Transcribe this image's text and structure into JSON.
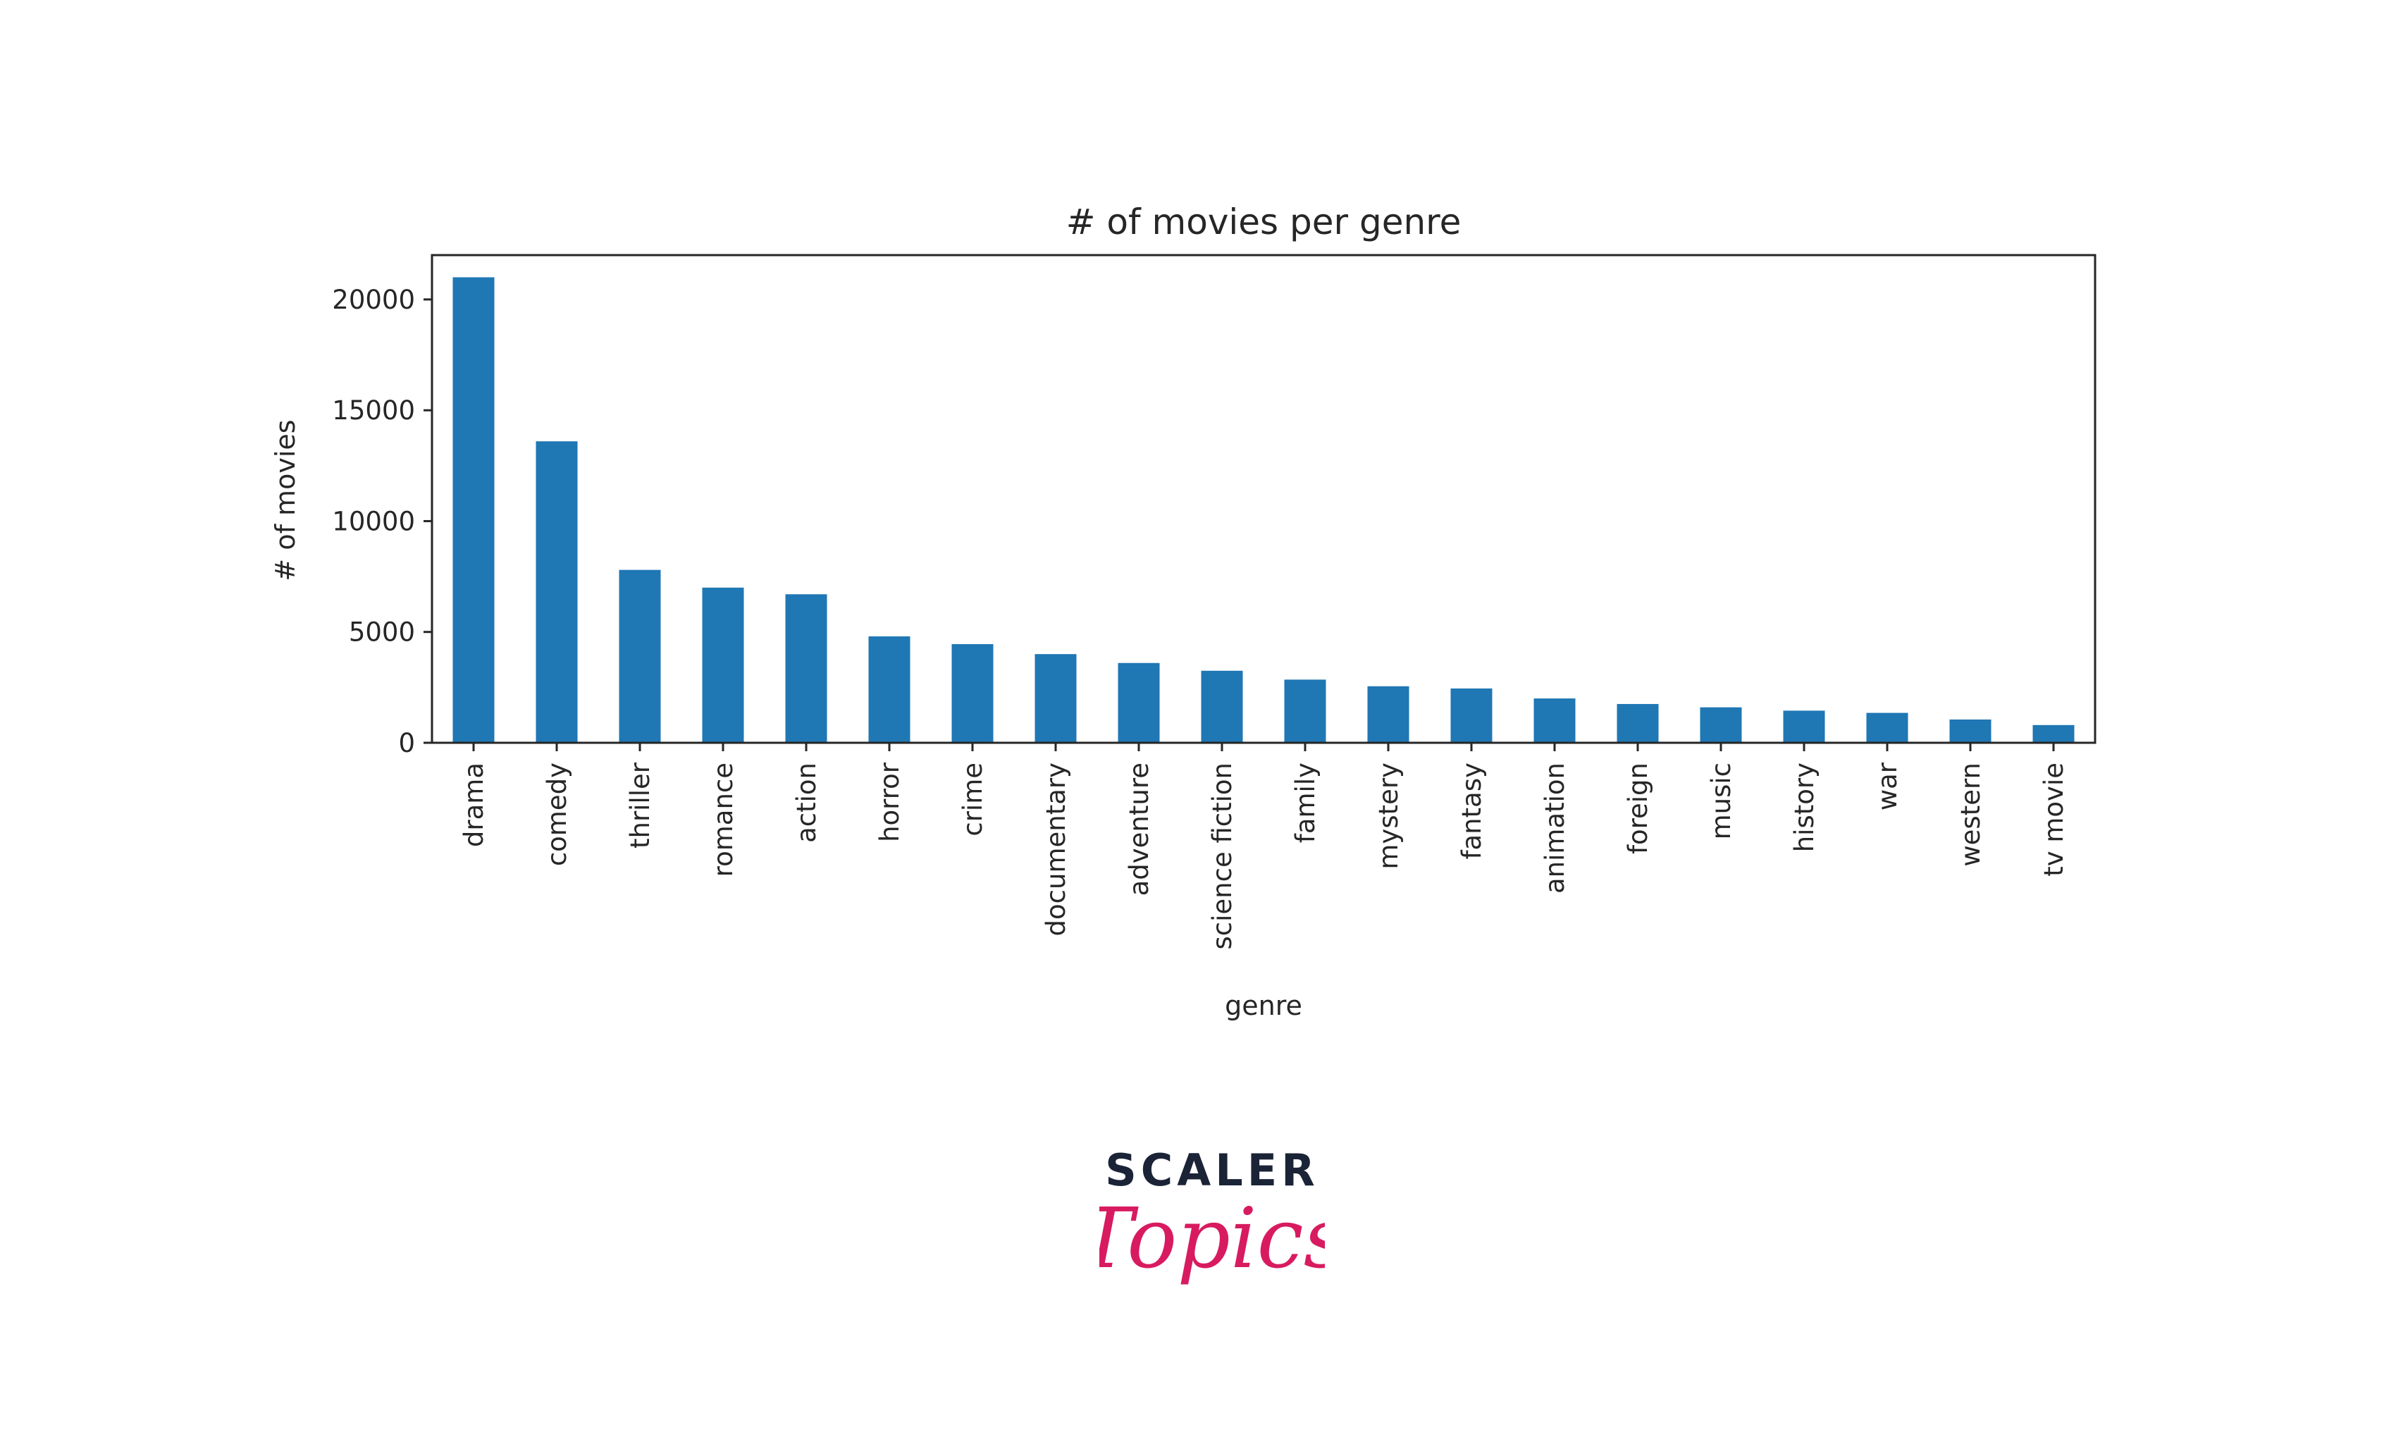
{
  "chart_data": {
    "type": "bar",
    "title": "# of movies per genre",
    "xlabel": "genre",
    "ylabel": "# of movies",
    "categories": [
      "drama",
      "comedy",
      "thriller",
      "romance",
      "action",
      "horror",
      "crime",
      "documentary",
      "adventure",
      "science fiction",
      "family",
      "mystery",
      "fantasy",
      "animation",
      "foreign",
      "music",
      "history",
      "war",
      "western",
      "tv movie"
    ],
    "values": [
      21000,
      13600,
      7800,
      7000,
      6700,
      4800,
      4450,
      4000,
      3600,
      3250,
      2850,
      2550,
      2450,
      2000,
      1750,
      1600,
      1450,
      1350,
      1050,
      800
    ],
    "yticks": [
      0,
      5000,
      10000,
      15000,
      20000
    ],
    "ylim": [
      0,
      22000
    ],
    "grid": false,
    "bar_color": "#1f77b4"
  },
  "branding": {
    "line1": "SCALER",
    "line2": "Topics",
    "color_dark": "#1b2336",
    "color_accent": "#d81b60"
  }
}
